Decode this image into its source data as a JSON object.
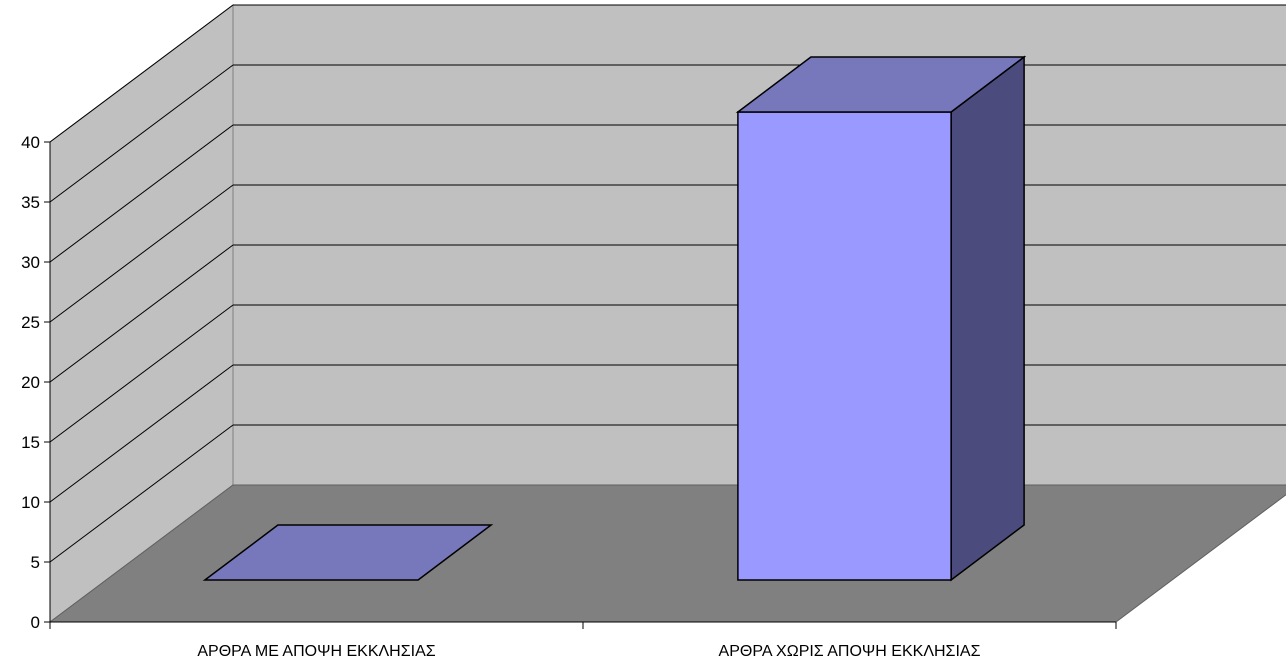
{
  "chart_data": {
    "type": "bar",
    "style": "3d-column",
    "categories": [
      "ΑΡΘΡΑ ΜΕ ΑΠΟΨΗ ΕΚΚΛΗΣΙΑΣ",
      "ΑΡΘΡΑ ΧΩΡΙΣ ΑΠΟΨΗ ΕΚΚΛΗΣΙΑΣ"
    ],
    "values": [
      0,
      39
    ],
    "title": "",
    "xlabel": "",
    "ylabel": "",
    "ylim": [
      0,
      40
    ],
    "yticks": [
      "0",
      "5",
      "10",
      "15",
      "20",
      "25",
      "30",
      "35",
      "40"
    ],
    "grid": true,
    "legend": "none",
    "colors": {
      "bar_front": "#9999ff",
      "bar_top": "#7777bb",
      "bar_side": "#4b4b7d",
      "back_wall": "#c0c0c0",
      "side_wall": "#c0c0c0",
      "floor": "#808080",
      "gridline": "#000000"
    }
  }
}
